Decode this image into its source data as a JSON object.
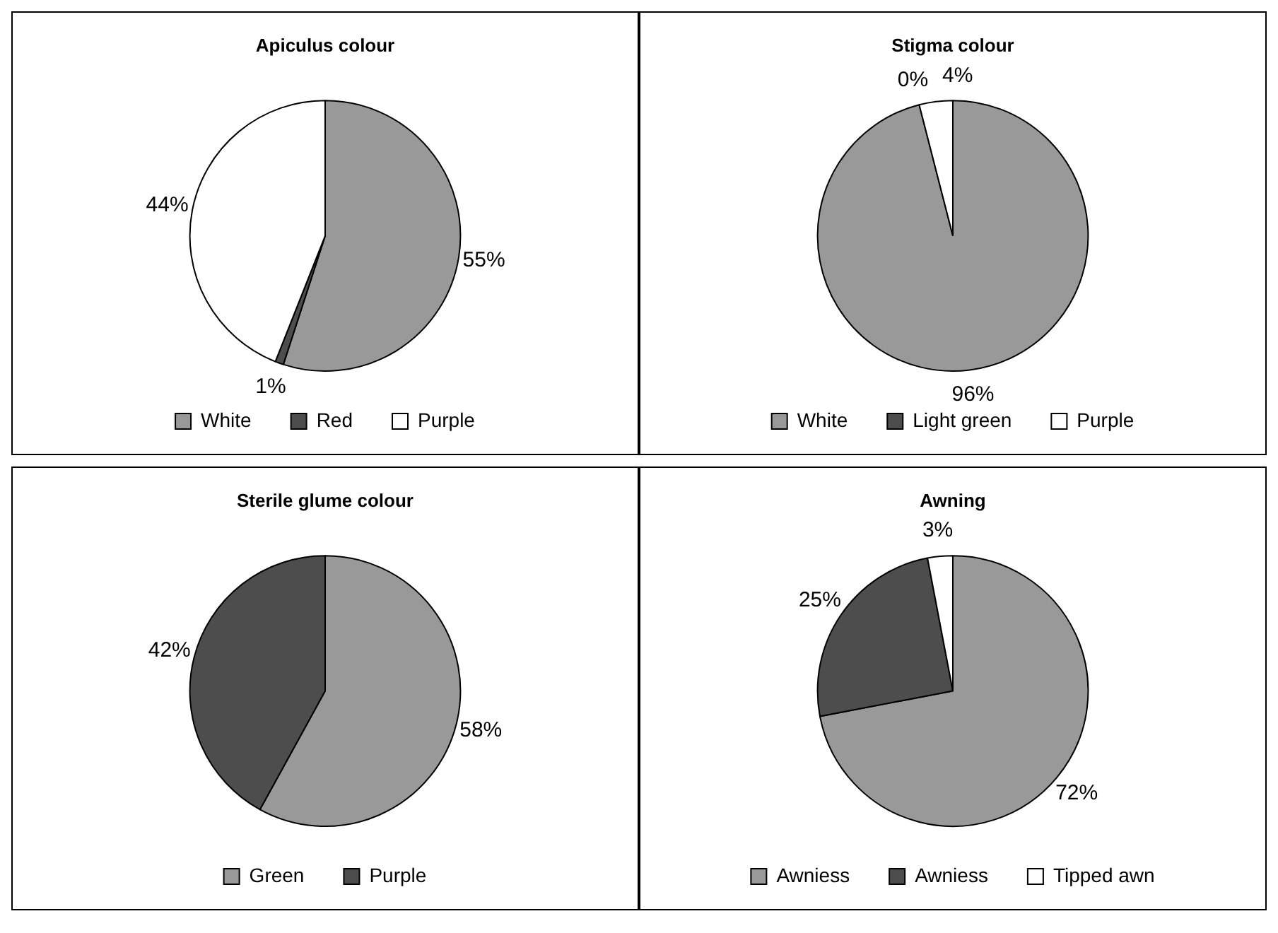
{
  "chart_data": [
    {
      "type": "pie",
      "title": "Apiculus colour",
      "categories": [
        "White",
        "Red",
        "Purple"
      ],
      "values": [
        55,
        1,
        44
      ],
      "colors": [
        "#999999",
        "#4d4d4d",
        "#ffffff"
      ],
      "value_labels": [
        "55%",
        "1%",
        "44%"
      ],
      "legend": "bottom"
    },
    {
      "type": "pie",
      "title": "Stigma colour",
      "categories": [
        "White",
        "Light green",
        "Purple"
      ],
      "values": [
        96,
        0,
        4
      ],
      "colors": [
        "#999999",
        "#4d4d4d",
        "#ffffff"
      ],
      "value_labels": [
        "96%",
        "0%",
        "4%"
      ],
      "legend": "bottom"
    },
    {
      "type": "pie",
      "title": "Sterile glume colour",
      "categories": [
        "Green",
        "Purple"
      ],
      "values": [
        58,
        42
      ],
      "colors": [
        "#999999",
        "#4d4d4d"
      ],
      "value_labels": [
        "58%",
        "42%"
      ],
      "legend": "bottom"
    },
    {
      "type": "pie",
      "title": "Awning",
      "categories": [
        "Awniess",
        "Awniess",
        "Tipped awn"
      ],
      "values": [
        72,
        25,
        3
      ],
      "colors": [
        "#999999",
        "#4d4d4d",
        "#ffffff"
      ],
      "value_labels": [
        "72%",
        "25%",
        "3%"
      ],
      "legend": "bottom"
    }
  ]
}
